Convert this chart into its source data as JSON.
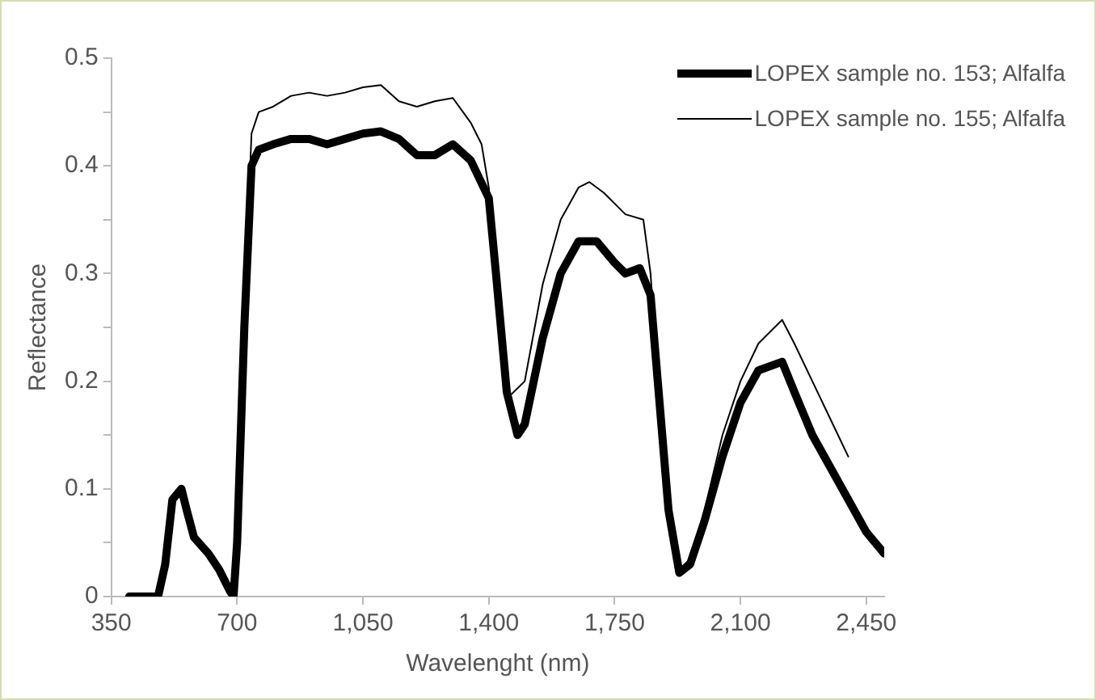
{
  "chart_data": {
    "type": "line",
    "xlabel": "Wavelenght (nm)",
    "ylabel": "Reflectance",
    "xlim": [
      350,
      2500
    ],
    "xticks": [
      {
        "value": 350,
        "label": "350"
      },
      {
        "value": 700,
        "label": "700"
      },
      {
        "value": 1050,
        "label": "1,050"
      },
      {
        "value": 1400,
        "label": "1,400"
      },
      {
        "value": 1750,
        "label": "1,750"
      },
      {
        "value": 2100,
        "label": "2,100"
      },
      {
        "value": 2450,
        "label": "2,450"
      }
    ],
    "ylim": [
      0,
      0.5
    ],
    "yticks": [
      0,
      {
        "value": 0.05,
        "label": null
      },
      0.1,
      {
        "value": 0.15,
        "label": null
      },
      0.2,
      {
        "value": 0.25,
        "label": null
      },
      0.3,
      {
        "value": 0.35,
        "label": null
      },
      0.4,
      {
        "value": 0.45,
        "label": null
      },
      0.5
    ],
    "legend": "top right",
    "marker": "none",
    "line_style": "solid",
    "series": [
      {
        "name": "LOPEX sample no. 153; Alfalfa",
        "color": "#000000",
        "x": [
          400,
          480,
          500,
          520,
          545,
          560,
          580,
          620,
          650,
          680,
          690,
          700,
          720,
          740,
          760,
          800,
          850,
          900,
          950,
          1000,
          1050,
          1100,
          1150,
          1200,
          1250,
          1300,
          1350,
          1400,
          1420,
          1450,
          1480,
          1500,
          1550,
          1600,
          1650,
          1700,
          1750,
          1780,
          1820,
          1850,
          1870,
          1900,
          1930,
          1960,
          2000,
          2050,
          2100,
          2150,
          2216,
          2250,
          2300,
          2350,
          2400,
          2450,
          2500
        ],
        "values": [
          0,
          0,
          0.03,
          0.09,
          0.1,
          0.08,
          0.055,
          0.04,
          0.025,
          0.005,
          0,
          0.05,
          0.25,
          0.4,
          0.415,
          0.42,
          0.425,
          0.425,
          0.42,
          0.425,
          0.43,
          0.432,
          0.425,
          0.41,
          0.41,
          0.42,
          0.405,
          0.37,
          0.3,
          0.19,
          0.15,
          0.16,
          0.24,
          0.3,
          0.33,
          0.33,
          0.31,
          0.3,
          0.305,
          0.28,
          0.2,
          0.08,
          0.022,
          0.03,
          0.07,
          0.13,
          0.18,
          0.21,
          0.218,
          0.19,
          0.15,
          0.12,
          0.09,
          0.06,
          0.04
        ]
      },
      {
        "name": "LOPEX sample no. 155; Alfalfa",
        "color": "#000000",
        "x": [
          400,
          480,
          500,
          520,
          545,
          560,
          580,
          620,
          650,
          680,
          690,
          700,
          720,
          740,
          760,
          800,
          850,
          900,
          950,
          1000,
          1050,
          1100,
          1150,
          1200,
          1250,
          1300,
          1350,
          1380,
          1400,
          1420,
          1448,
          1500,
          1550,
          1600,
          1650,
          1680,
          1720,
          1780,
          1830,
          1850,
          1870,
          1900,
          1930,
          1960,
          2000,
          2050,
          2100,
          2150,
          2216,
          2250,
          2300,
          2350,
          2400
        ],
        "values": [
          0,
          0,
          0.03,
          0.09,
          0.1,
          0.08,
          0.055,
          0.04,
          0.025,
          0.005,
          0,
          0.05,
          0.26,
          0.43,
          0.45,
          0.455,
          0.465,
          0.468,
          0.465,
          0.468,
          0.473,
          0.475,
          0.46,
          0.455,
          0.46,
          0.463,
          0.44,
          0.42,
          0.38,
          0.3,
          0.183,
          0.2,
          0.29,
          0.35,
          0.38,
          0.385,
          0.375,
          0.355,
          0.35,
          0.3,
          0.2,
          0.08,
          0.025,
          0.035,
          0.08,
          0.15,
          0.2,
          0.235,
          0.257,
          0.235,
          0.2,
          0.165,
          0.13
        ]
      }
    ]
  }
}
